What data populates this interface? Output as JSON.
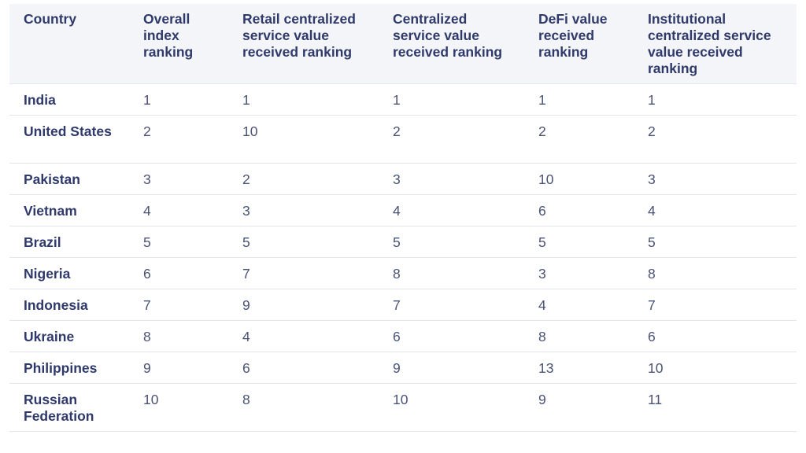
{
  "table": {
    "headers": [
      "Country",
      "Overall index ranking",
      "Retail centralized service value received ranking",
      "Centralized service value received ranking",
      "DeFi value received ranking",
      "Institutional centralized service value received ranking"
    ],
    "rows": [
      [
        "India",
        "1",
        "1",
        "1",
        "1",
        "1"
      ],
      [
        "United States",
        "2",
        "10",
        "2",
        "2",
        "2"
      ],
      [
        "Pakistan",
        "3",
        "2",
        "3",
        "10",
        "3"
      ],
      [
        "Vietnam",
        "4",
        "3",
        "4",
        "6",
        "4"
      ],
      [
        "Brazil",
        "5",
        "5",
        "5",
        "5",
        "5"
      ],
      [
        "Nigeria",
        "6",
        "7",
        "8",
        "3",
        "8"
      ],
      [
        "Indonesia",
        "7",
        "9",
        "7",
        "4",
        "7"
      ],
      [
        "Ukraine",
        "8",
        "4",
        "6",
        "8",
        "6"
      ],
      [
        "Philippines",
        "9",
        "6",
        "9",
        "13",
        "10"
      ],
      [
        "Russian Federation",
        "10",
        "8",
        "10",
        "9",
        "11"
      ]
    ]
  },
  "colors": {
    "header_bg": "#f4f5f8",
    "text": "#2f3a6b",
    "border": "#e3e5ec"
  }
}
